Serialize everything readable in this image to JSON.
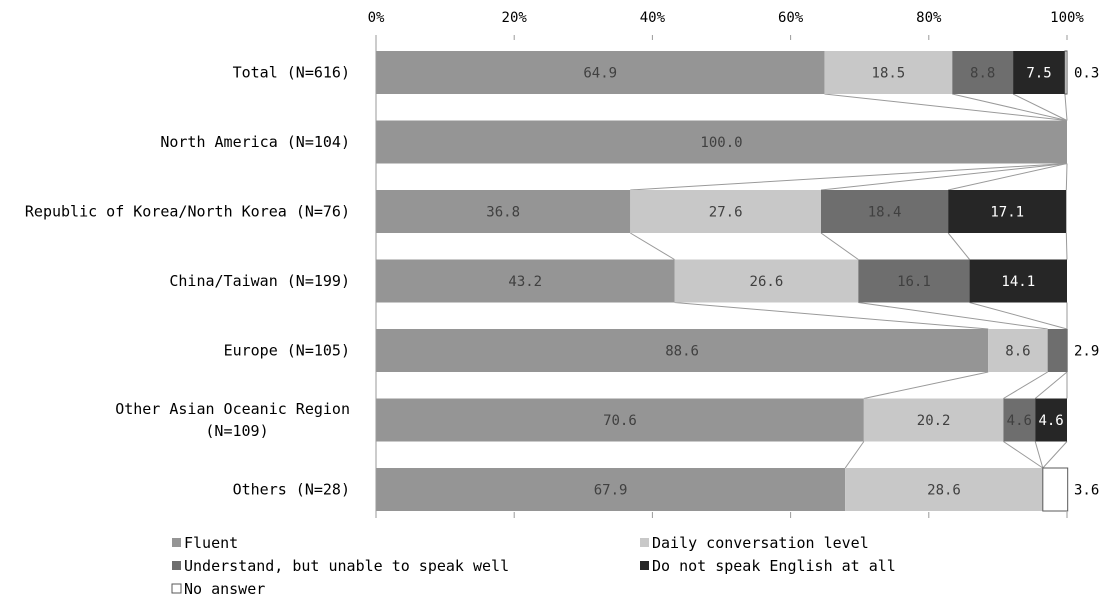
{
  "chart_data": {
    "type": "bar",
    "orientation": "horizontal",
    "stacked": "percent",
    "title": "",
    "xlabel": "",
    "ylabel": "",
    "xlim": [
      0,
      100
    ],
    "x_tick_labels": [
      "0%",
      "20%",
      "40%",
      "60%",
      "80%",
      "100%"
    ],
    "grid": false,
    "legend_position": "bottom",
    "categories": [
      [
        "Total (N=616)"
      ],
      [
        "North America (N=104)"
      ],
      [
        "Republic of Korea/North Korea (N=76)"
      ],
      [
        "China/Taiwan (N=199)"
      ],
      [
        "Europe (N=105)"
      ],
      [
        "Other Asian Oceanic Region",
        "(N=109)"
      ],
      [
        "Others (N=28)"
      ]
    ],
    "series": [
      {
        "name": "Fluent",
        "color": "#959595",
        "label_color": "#404040",
        "values": [
          64.9,
          100.0,
          36.8,
          43.2,
          88.6,
          70.6,
          67.9
        ]
      },
      {
        "name": "Daily conversation level",
        "color": "#c8c8c8",
        "label_color": "#404040",
        "values": [
          18.5,
          0,
          27.6,
          26.6,
          8.6,
          20.2,
          28.6
        ]
      },
      {
        "name": "Understand, but unable to speak well",
        "color": "#6e6e6e",
        "label_color": "#404040",
        "values": [
          8.8,
          0,
          18.4,
          16.1,
          2.9,
          4.6,
          0
        ]
      },
      {
        "name": "Do not speak English at all",
        "color": "#262626",
        "label_color": "#ffffff",
        "values": [
          7.5,
          0,
          17.1,
          14.1,
          0,
          4.6,
          0
        ]
      },
      {
        "name": "No answer",
        "color": "#ffffff",
        "label_color": "#000000",
        "values": [
          0.3,
          0,
          0,
          0,
          0,
          0,
          3.6
        ]
      }
    ],
    "data_labels": [
      [
        "64.9",
        "18.5",
        "8.8",
        "7.5",
        "0.3"
      ],
      [
        "100.0",
        "",
        "",
        "",
        ""
      ],
      [
        "36.8",
        "27.6",
        "18.4",
        "17.1",
        ""
      ],
      [
        "43.2",
        "26.6",
        "16.1",
        "14.1",
        ""
      ],
      [
        "88.6",
        "8.6",
        "2.9",
        "",
        ""
      ],
      [
        "70.6",
        "20.2",
        "4.6",
        "4.6",
        ""
      ],
      [
        "67.9",
        "28.6",
        "",
        "",
        "3.6"
      ]
    ],
    "outside_labels": [
      [
        0,
        4
      ],
      [
        4,
        2
      ],
      [
        6,
        4
      ]
    ]
  }
}
